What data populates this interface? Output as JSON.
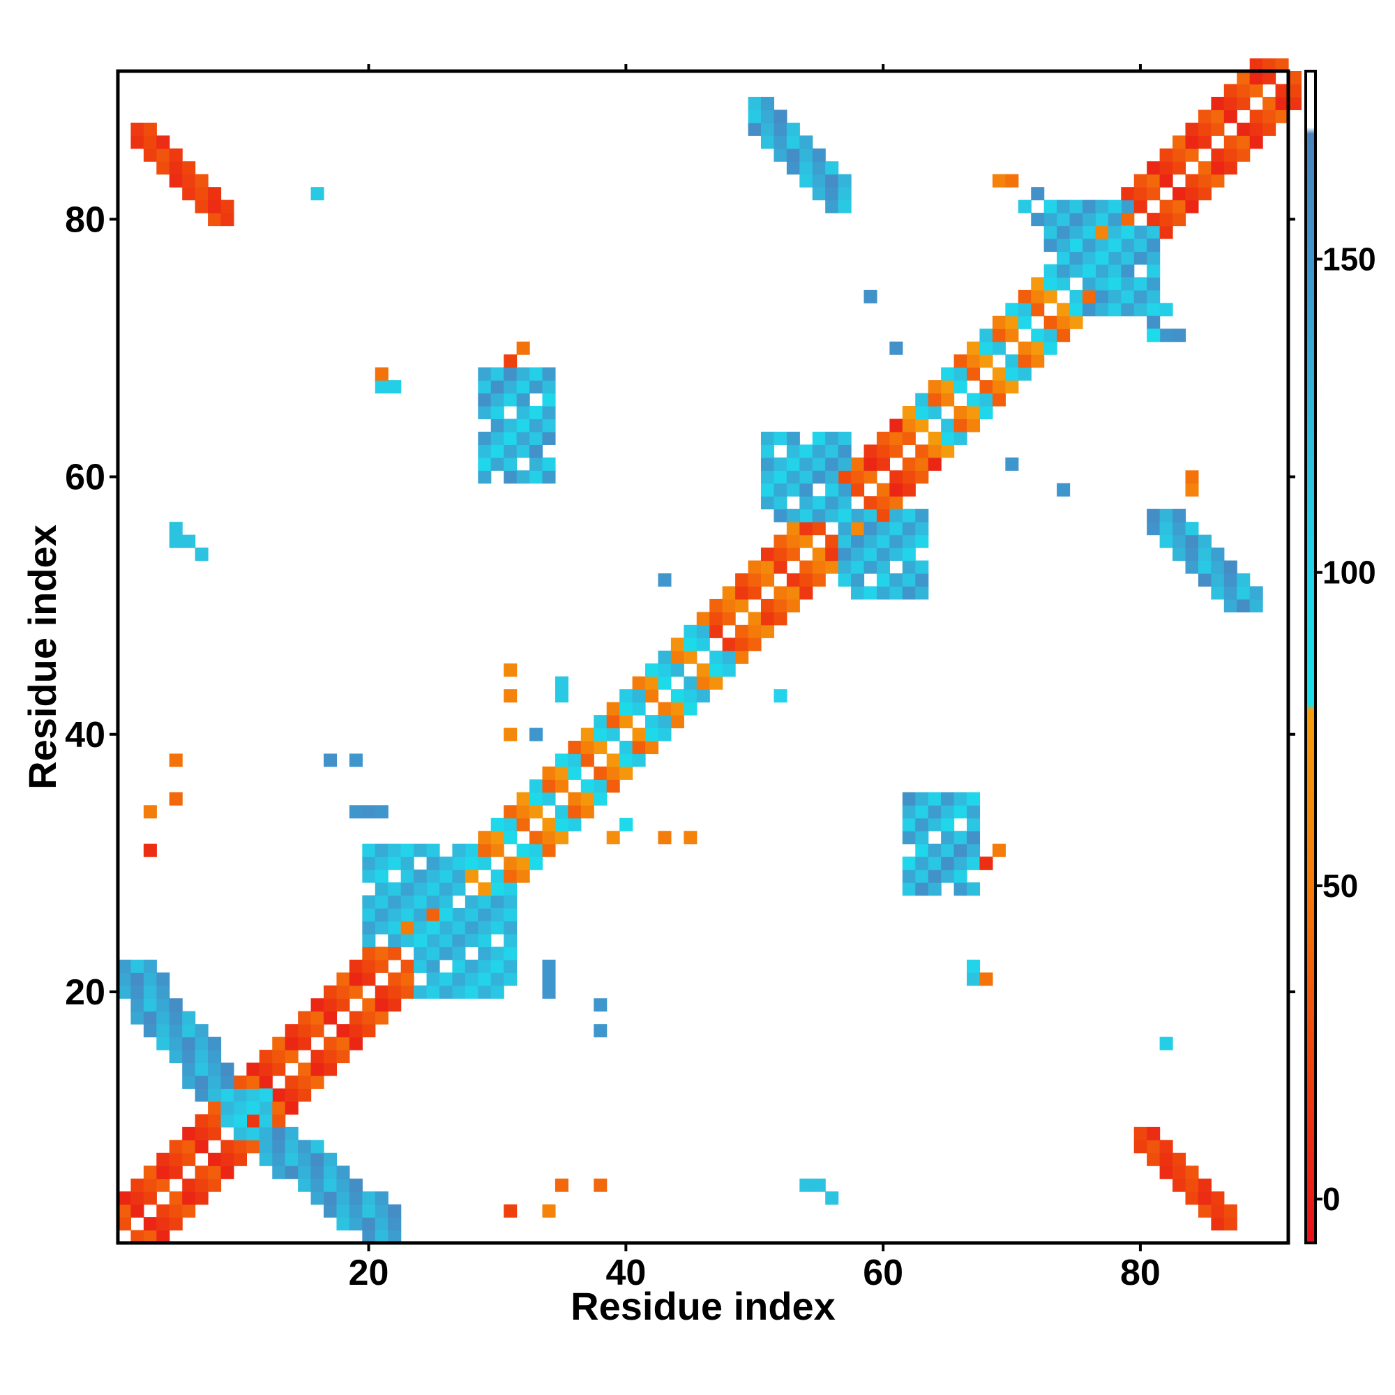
{
  "chart_data": {
    "type": "heatmap",
    "xlabel": "Residue index",
    "ylabel": "Residue index",
    "xlim": [
      0.5,
      91.5
    ],
    "ylim": [
      0.5,
      91.5
    ],
    "x_ticks": [
      20,
      40,
      60,
      80
    ],
    "y_ticks": [
      20,
      40,
      60,
      80
    ],
    "colorbar": {
      "range": [
        -7,
        180
      ],
      "ticks": [
        0,
        50,
        100,
        150
      ],
      "stops": [
        {
          "value": -7,
          "color": "#e8111b"
        },
        {
          "value": 25,
          "color": "#f04a0c"
        },
        {
          "value": 50,
          "color": "#f47c0a"
        },
        {
          "value": 78,
          "color": "#f59d0d"
        },
        {
          "value": 79,
          "color": "#1adfe8"
        },
        {
          "value": 100,
          "color": "#22d3ea"
        },
        {
          "value": 120,
          "color": "#2fbede"
        },
        {
          "value": 150,
          "color": "#3f96cc"
        },
        {
          "value": 170,
          "color": "#4a83be"
        },
        {
          "value": 171,
          "color": "#ffffff"
        },
        {
          "value": 180,
          "color": "#ffffff"
        }
      ]
    },
    "grid": false,
    "legend": "colorbar-right",
    "blocks": [
      {
        "x": [
          1,
          14
        ],
        "y": [
          1,
          14
        ],
        "pattern": "band",
        "anti": false,
        "values": [
          5,
          35
        ]
      },
      {
        "x": [
          10,
          23
        ],
        "y": [
          10,
          23
        ],
        "pattern": "band",
        "anti": false,
        "values": [
          5,
          40
        ]
      },
      {
        "x": [
          22,
          31
        ],
        "y": [
          22,
          31
        ],
        "pattern": "band",
        "anti": false,
        "values": [
          30,
          55
        ]
      },
      {
        "x": [
          28,
          41
        ],
        "y": [
          28,
          41
        ],
        "pattern": "band",
        "anti": false,
        "values": [
          40,
          105
        ]
      },
      {
        "x": [
          34,
          45
        ],
        "y": [
          34,
          45
        ],
        "pattern": "band",
        "anti": false,
        "values": [
          35,
          110
        ]
      },
      {
        "x": [
          40,
          51
        ],
        "y": [
          40,
          51
        ],
        "pattern": "band",
        "anti": false,
        "values": [
          50,
          125
        ]
      },
      {
        "x": [
          47,
          58
        ],
        "y": [
          47,
          58
        ],
        "pattern": "band",
        "anti": false,
        "values": [
          15,
          60
        ]
      },
      {
        "x": [
          57,
          66
        ],
        "y": [
          57,
          66
        ],
        "pattern": "band",
        "anti": false,
        "values": [
          5,
          45
        ]
      },
      {
        "x": [
          62,
          76
        ],
        "y": [
          62,
          76
        ],
        "pattern": "band",
        "anti": false,
        "values": [
          35,
          115
        ]
      },
      {
        "x": [
          74,
          80
        ],
        "y": [
          74,
          80
        ],
        "pattern": "band",
        "anti": false,
        "values": [
          40,
          110
        ]
      },
      {
        "x": [
          79,
          92
        ],
        "y": [
          79,
          92
        ],
        "pattern": "band",
        "anti": false,
        "values": [
          5,
          40
        ]
      },
      {
        "x": [
          1,
          9
        ],
        "y": [
          12,
          22
        ],
        "pattern": "anti",
        "anti": true,
        "values": [
          115,
          160
        ]
      },
      {
        "x": [
          12,
          22
        ],
        "y": [
          1,
          9
        ],
        "pattern": "anti",
        "anti": true,
        "values": [
          115,
          160
        ]
      },
      {
        "x": [
          9,
          12
        ],
        "y": [
          9,
          12
        ],
        "pattern": "fill",
        "anti": false,
        "values": [
          100,
          130
        ]
      },
      {
        "x": [
          20,
          27
        ],
        "y": [
          24,
          31
        ],
        "pattern": "fill",
        "anti": false,
        "values": [
          100,
          140
        ]
      },
      {
        "x": [
          24,
          31
        ],
        "y": [
          20,
          27
        ],
        "pattern": "fill",
        "anti": false,
        "values": [
          100,
          140
        ]
      },
      {
        "x": [
          51,
          57
        ],
        "y": [
          57,
          63
        ],
        "pattern": "fill",
        "anti": false,
        "values": [
          100,
          150
        ]
      },
      {
        "x": [
          57,
          63
        ],
        "y": [
          51,
          57
        ],
        "pattern": "fill",
        "anti": false,
        "values": [
          100,
          150
        ]
      },
      {
        "x": [
          76,
          81
        ],
        "y": [
          73,
          79
        ],
        "pattern": "fill",
        "anti": false,
        "values": [
          100,
          150
        ]
      },
      {
        "x": [
          73,
          79
        ],
        "y": [
          76,
          81
        ],
        "pattern": "fill",
        "anti": false,
        "values": [
          100,
          150
        ]
      },
      {
        "x": [
          29,
          34
        ],
        "y": [
          60,
          68
        ],
        "pattern": "fill",
        "anti": false,
        "values": [
          95,
          155
        ]
      },
      {
        "x": [
          62,
          67
        ],
        "y": [
          28,
          35
        ],
        "pattern": "fill",
        "anti": false,
        "values": [
          95,
          155
        ]
      },
      {
        "x": [
          50,
          57
        ],
        "y": [
          81,
          89
        ],
        "pattern": "anti",
        "anti": true,
        "values": [
          110,
          160
        ]
      },
      {
        "x": [
          81,
          89
        ],
        "y": [
          50,
          57
        ],
        "pattern": "anti",
        "anti": true,
        "values": [
          110,
          160
        ]
      },
      {
        "x": [
          2,
          9
        ],
        "y": [
          80,
          87
        ],
        "pattern": "anti",
        "anti": true,
        "values": [
          8,
          30
        ]
      },
      {
        "x": [
          80,
          87
        ],
        "y": [
          2,
          9
        ],
        "pattern": "anti",
        "anti": true,
        "values": [
          8,
          30
        ]
      }
    ],
    "cells": [
      [
        16,
        82,
        110
      ],
      [
        55,
        5,
        115
      ],
      [
        56,
        4,
        115
      ],
      [
        54,
        5,
        115
      ],
      [
        6,
        55,
        115
      ],
      [
        5,
        56,
        115
      ],
      [
        7,
        54,
        115
      ],
      [
        5,
        55,
        115
      ],
      [
        22,
        67,
        105
      ],
      [
        21,
        67,
        105
      ],
      [
        21,
        68,
        45
      ],
      [
        31,
        69,
        20
      ],
      [
        32,
        70,
        45
      ],
      [
        59,
        74,
        155
      ],
      [
        61,
        70,
        155
      ],
      [
        69,
        83,
        55
      ],
      [
        70,
        83,
        45
      ],
      [
        71,
        81,
        110
      ],
      [
        72,
        82,
        155
      ],
      [
        72,
        80,
        150
      ],
      [
        81,
        72,
        155
      ],
      [
        82,
        71,
        150
      ],
      [
        83,
        71,
        155
      ],
      [
        81,
        71,
        85
      ],
      [
        82,
        73,
        105
      ],
      [
        84,
        59,
        55
      ],
      [
        84,
        60,
        45
      ],
      [
        70,
        61,
        150
      ],
      [
        74,
        59,
        150
      ],
      [
        43,
        52,
        150
      ],
      [
        52,
        43,
        100
      ],
      [
        35,
        44,
        110
      ],
      [
        35,
        43,
        110
      ],
      [
        31,
        45,
        60
      ],
      [
        31,
        43,
        55
      ],
      [
        31,
        40,
        60
      ],
      [
        33,
        40,
        150
      ],
      [
        17,
        38,
        155
      ],
      [
        19,
        38,
        150
      ],
      [
        19,
        34,
        150
      ],
      [
        20,
        34,
        155
      ],
      [
        21,
        34,
        150
      ],
      [
        5,
        38,
        45
      ],
      [
        5,
        35,
        40
      ],
      [
        3,
        34,
        50
      ],
      [
        3,
        31,
        10
      ],
      [
        39,
        32,
        65
      ],
      [
        43,
        32,
        50
      ],
      [
        45,
        32,
        55
      ],
      [
        40,
        33,
        90
      ],
      [
        68,
        30,
        10
      ],
      [
        69,
        31,
        50
      ],
      [
        67,
        21,
        115
      ],
      [
        67,
        22,
        100
      ],
      [
        68,
        21,
        45
      ],
      [
        34,
        21,
        150
      ],
      [
        34,
        20,
        150
      ],
      [
        34,
        22,
        150
      ],
      [
        38,
        19,
        150
      ],
      [
        38,
        17,
        150
      ],
      [
        31,
        3,
        20
      ],
      [
        34,
        3,
        55
      ],
      [
        35,
        5,
        40
      ],
      [
        38,
        5,
        40
      ],
      [
        82,
        16,
        105
      ]
    ]
  }
}
